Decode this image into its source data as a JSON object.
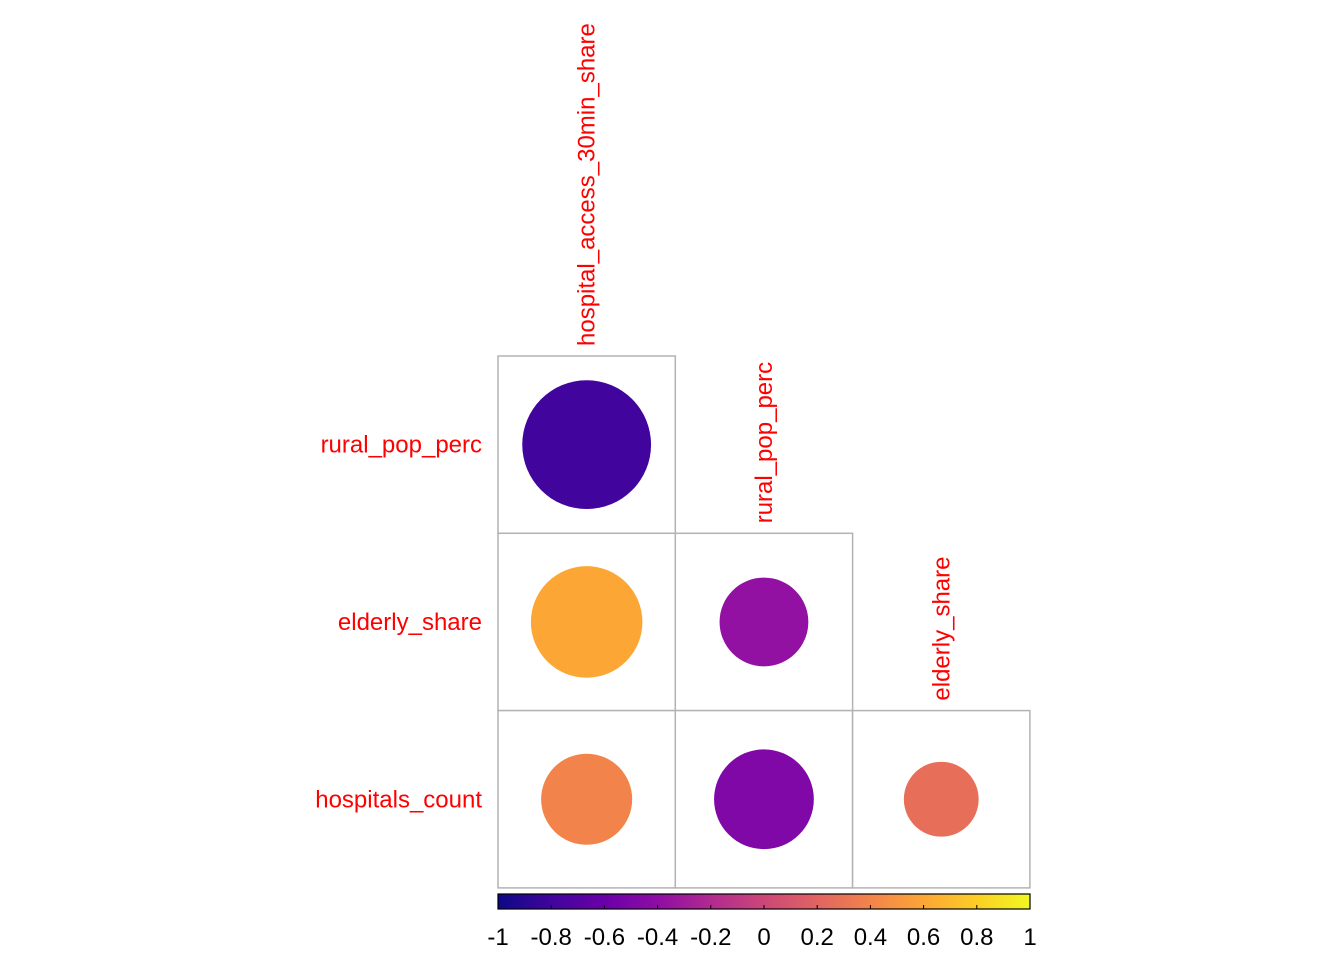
{
  "chart_data": {
    "type": "heatmap",
    "subtype": "correlation-circle-lower",
    "variables_x": [
      "hospital_access_30min_share",
      "rural_pop_perc",
      "elderly_share"
    ],
    "variables_y": [
      "rural_pop_perc",
      "elderly_share",
      "hospitals_count"
    ],
    "cells": [
      {
        "row": "rural_pop_perc",
        "col": "hospital_access_30min_share",
        "value": -0.8
      },
      {
        "row": "elderly_share",
        "col": "hospital_access_30min_share",
        "value": 0.6
      },
      {
        "row": "elderly_share",
        "col": "rural_pop_perc",
        "value": -0.38
      },
      {
        "row": "hospitals_count",
        "col": "hospital_access_30min_share",
        "value": 0.4
      },
      {
        "row": "hospitals_count",
        "col": "rural_pop_perc",
        "value": -0.48
      },
      {
        "row": "hospitals_count",
        "col": "elderly_share",
        "value": 0.27
      }
    ],
    "colorbar": {
      "range": [
        -1,
        1
      ],
      "ticks": [
        "-1",
        "-0.8",
        "-0.6",
        "-0.4",
        "-0.2",
        "0",
        "0.2",
        "0.4",
        "0.6",
        "0.8",
        "1"
      ],
      "colors": [
        "#0d0887",
        "#41049d",
        "#6a00a8",
        "#8f0da4",
        "#b12a90",
        "#cc4778",
        "#e16462",
        "#f2844b",
        "#fca636",
        "#fcce25",
        "#f0f921"
      ]
    },
    "label_color": "#ff0000",
    "grid_color": "#b3b3b3"
  }
}
